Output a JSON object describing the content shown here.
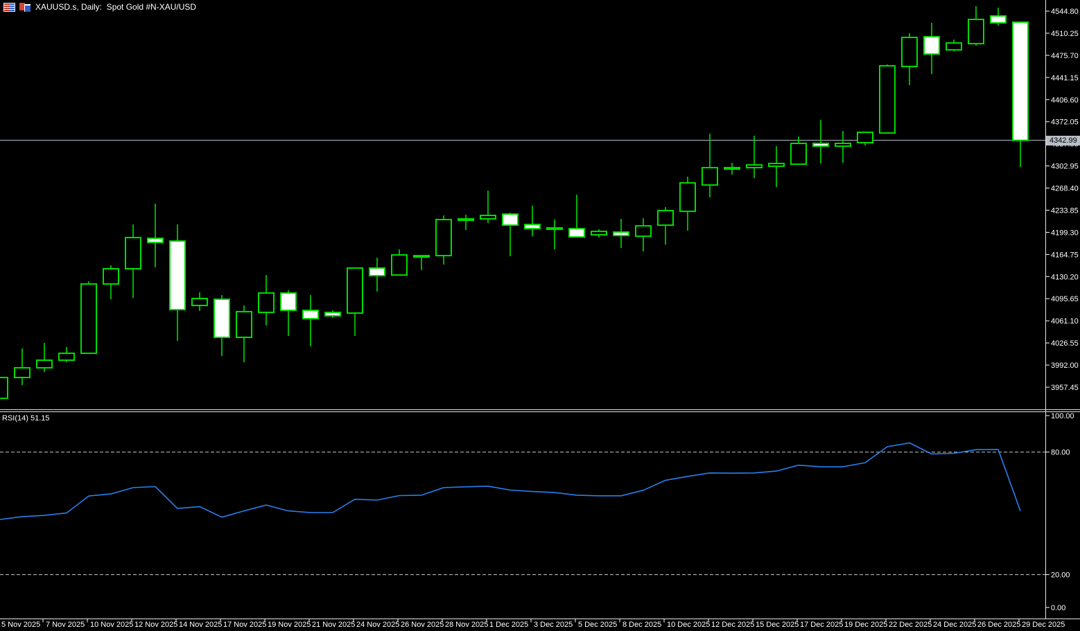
{
  "window": {
    "title": "XAUUSD.s, Daily:  Spot Gold #N-XAU/USD",
    "icons": [
      "tiled-panes-icon",
      "cascaded-charts-icon"
    ]
  },
  "indicator": {
    "name": "RSI(14)",
    "value": "51.15"
  },
  "price_scale": {
    "current_price": "4342.99",
    "ticks": [
      "4544.80",
      "4510.25",
      "4475.70",
      "4441.15",
      "4406.60",
      "4372.05",
      "4337.50",
      "4302.95",
      "4268.40",
      "4233.85",
      "4199.30",
      "4164.75",
      "4130.20",
      "4095.65",
      "4061.10",
      "4026.55",
      "3992.00",
      "3957.45"
    ]
  },
  "rsi_scale": {
    "ticks": [
      "100.00",
      "80.00",
      "20.00",
      "0.00"
    ]
  },
  "time_scale": {
    "labels": [
      "5 Nov 2025",
      "7 Nov 2025",
      "10 Nov 2025",
      "12 Nov 2025",
      "14 Nov 2025",
      "17 Nov 2025",
      "19 Nov 2025",
      "21 Nov 2025",
      "24 Nov 2025",
      "26 Nov 2025",
      "28 Nov 2025",
      "1 Dec 2025",
      "3 Dec 2025",
      "5 Dec 2025",
      "8 Dec 2025",
      "10 Dec 2025",
      "12 Dec 2025",
      "15 Dec 2025",
      "17 Dec 2025",
      "19 Dec 2025",
      "22 Dec 2025",
      "24 Dec 2025",
      "26 Dec 2025",
      "29 Dec 2025"
    ]
  },
  "colors": {
    "background": "#000000",
    "candle_outline": "#00dd00",
    "bull_fill": "#000000",
    "bear_fill": "#ffffff",
    "rsi_line": "#2880f0",
    "level_dash": "#cccccc",
    "bid_line": "#9097a0",
    "axis_line": "#e8e8e8",
    "axis_text": "#ffffff",
    "price_tag_bg": "#b9bec7",
    "price_tag_text": "#000000"
  },
  "chart_data": {
    "type": "candlestick",
    "title": "XAUUSD.s, Daily: Spot Gold #N-XAU/USD",
    "symbol": "XAUUSD.s",
    "timeframe": "Daily",
    "legend_position": "none",
    "grid": "off",
    "price_axis": {
      "visible_range": [
        3930,
        4562
      ],
      "tick_step": 34.55,
      "ticks": [
        4544.8,
        4510.25,
        4475.7,
        4441.15,
        4406.6,
        4372.05,
        4337.5,
        4302.95,
        4268.4,
        4233.85,
        4199.3,
        4164.75,
        4130.2,
        4095.65,
        4061.1,
        4026.55,
        3992.0,
        3957.45
      ]
    },
    "current_price": 4342.99,
    "candles": [
      {
        "date": "5 Nov 2025",
        "o": 3940.0,
        "h": 3972.6,
        "l": 3940.0,
        "c": 3972.6
      },
      {
        "date": "6 Nov 2025",
        "o": 3972.6,
        "h": 4018.0,
        "l": 3960.7,
        "c": 3987.7
      },
      {
        "date": "7 Nov 2025",
        "o": 3987.7,
        "h": 4026.6,
        "l": 3981.2,
        "c": 3999.6
      },
      {
        "date": "8 Nov 2025",
        "o": 3999.6,
        "h": 4020.2,
        "l": 3996.4,
        "c": 4010.4
      },
      {
        "date": "10 Nov 2025",
        "o": 4010.4,
        "h": 4122.9,
        "l": 4010.4,
        "c": 4118.6
      },
      {
        "date": "11 Nov 2025",
        "o": 4118.6,
        "h": 4147.8,
        "l": 4094.8,
        "c": 4142.4
      },
      {
        "date": "12 Nov 2025",
        "o": 4142.4,
        "h": 4211.6,
        "l": 4097.0,
        "c": 4191.1
      },
      {
        "date": "13 Nov 2025",
        "o": 4190.0,
        "h": 4244.1,
        "l": 4144.6,
        "c": 4183.5
      },
      {
        "date": "14 Nov 2025",
        "o": 4185.7,
        "h": 4211.6,
        "l": 4029.9,
        "c": 4078.6
      },
      {
        "date": "15 Nov 2025",
        "o": 4085.1,
        "h": 4105.6,
        "l": 4076.4,
        "c": 4095.9
      },
      {
        "date": "17 Nov 2025",
        "o": 4094.8,
        "h": 4101.3,
        "l": 4006.1,
        "c": 4035.3
      },
      {
        "date": "18 Nov 2025",
        "o": 4035.3,
        "h": 4085.1,
        "l": 3996.4,
        "c": 4075.4
      },
      {
        "date": "19 Nov 2025",
        "o": 4074.3,
        "h": 4132.6,
        "l": 4053.7,
        "c": 4104.5
      },
      {
        "date": "20 Nov 2025",
        "o": 4104.5,
        "h": 4108.8,
        "l": 4037.5,
        "c": 4077.5
      },
      {
        "date": "21 Nov 2025",
        "o": 4077.5,
        "h": 4101.3,
        "l": 4021.3,
        "c": 4064.5
      },
      {
        "date": "22 Nov 2025",
        "o": 4074.3,
        "h": 4077.5,
        "l": 4065.6,
        "c": 4068.9
      },
      {
        "date": "24 Nov 2025",
        "o": 4073.2,
        "h": 4143.5,
        "l": 4037.5,
        "c": 4143.5
      },
      {
        "date": "25 Nov 2025",
        "o": 4143.5,
        "h": 4159.7,
        "l": 4106.7,
        "c": 4131.6
      },
      {
        "date": "26 Nov 2025",
        "o": 4132.6,
        "h": 4172.7,
        "l": 4132.6,
        "c": 4164.0
      },
      {
        "date": "27 Nov 2025",
        "o": 4160.8,
        "h": 4162.9,
        "l": 4140.3,
        "c": 4162.9
      },
      {
        "date": "28 Nov 2025",
        "o": 4162.9,
        "h": 4225.7,
        "l": 4148.9,
        "c": 4219.2
      },
      {
        "date": "29 Nov 2025",
        "o": 4218.1,
        "h": 4226.8,
        "l": 4203.0,
        "c": 4220.3
      },
      {
        "date": "1 Dec 2025",
        "o": 4220.3,
        "h": 4264.6,
        "l": 4213.8,
        "c": 4225.7
      },
      {
        "date": "2 Dec 2025",
        "o": 4227.8,
        "h": 4230.0,
        "l": 4161.9,
        "c": 4210.5
      },
      {
        "date": "3 Dec 2025",
        "o": 4211.6,
        "h": 4240.8,
        "l": 4193.2,
        "c": 4205.1
      },
      {
        "date": "4 Dec 2025",
        "o": 4204.0,
        "h": 4219.2,
        "l": 4172.7,
        "c": 4206.2
      },
      {
        "date": "5 Dec 2025",
        "o": 4205.1,
        "h": 4258.1,
        "l": 4192.1,
        "c": 4192.1
      },
      {
        "date": "6 Dec 2025",
        "o": 4195.4,
        "h": 4204.0,
        "l": 4191.1,
        "c": 4200.8
      },
      {
        "date": "8 Dec 2025",
        "o": 4199.7,
        "h": 4220.3,
        "l": 4174.8,
        "c": 4194.3
      },
      {
        "date": "9 Dec 2025",
        "o": 4193.2,
        "h": 4221.4,
        "l": 4169.4,
        "c": 4209.4
      },
      {
        "date": "10 Dec 2025",
        "o": 4210.5,
        "h": 4238.6,
        "l": 4180.2,
        "c": 4233.2
      },
      {
        "date": "11 Dec 2025",
        "o": 4232.1,
        "h": 4286.2,
        "l": 4201.9,
        "c": 4276.5
      },
      {
        "date": "12 Dec 2025",
        "o": 4273.2,
        "h": 4353.3,
        "l": 4253.8,
        "c": 4300.3
      },
      {
        "date": "13 Dec 2025",
        "o": 4298.1,
        "h": 4307.9,
        "l": 4289.5,
        "c": 4300.3
      },
      {
        "date": "15 Dec 2025",
        "o": 4300.3,
        "h": 4350.1,
        "l": 4284.1,
        "c": 4304.6
      },
      {
        "date": "16 Dec 2025",
        "o": 4302.5,
        "h": 4333.8,
        "l": 4270.0,
        "c": 4306.8
      },
      {
        "date": "17 Dec 2025",
        "o": 4305.7,
        "h": 4349.0,
        "l": 4305.7,
        "c": 4338.2
      },
      {
        "date": "18 Dec 2025",
        "o": 4338.2,
        "h": 4375.0,
        "l": 4306.8,
        "c": 4333.8
      },
      {
        "date": "19 Dec 2025",
        "o": 4333.8,
        "h": 4357.6,
        "l": 4307.9,
        "c": 4338.2
      },
      {
        "date": "20 Dec 2025",
        "o": 4339.3,
        "h": 4355.5,
        "l": 4334.9,
        "c": 4355.5
      },
      {
        "date": "22 Dec 2025",
        "o": 4354.4,
        "h": 4461.5,
        "l": 4354.4,
        "c": 4459.3
      },
      {
        "date": "23 Dec 2025",
        "o": 4458.3,
        "h": 4510.2,
        "l": 4429.1,
        "c": 4503.7
      },
      {
        "date": "24 Dec 2025",
        "o": 4504.8,
        "h": 4526.4,
        "l": 4446.4,
        "c": 4477.7
      },
      {
        "date": "25 Dec 2025",
        "o": 4484.2,
        "h": 4500.4,
        "l": 4482.1,
        "c": 4495.0
      },
      {
        "date": "26 Dec 2025",
        "o": 4494.0,
        "h": 4552.4,
        "l": 4490.7,
        "c": 4531.8
      },
      {
        "date": "27 Dec 2025",
        "o": 4537.2,
        "h": 4550.2,
        "l": 4522.1,
        "c": 4526.4
      },
      {
        "date": "29 Dec 2025",
        "o": 4527.5,
        "h": 4527.5,
        "l": 4301.4,
        "c": 4342.99
      }
    ],
    "indicator_pane": {
      "type": "line",
      "name": "RSI",
      "period": 14,
      "last_value": 51.15,
      "range": [
        0,
        100
      ],
      "levels": [
        80,
        20
      ],
      "values": [
        47.0,
        48.4,
        49.0,
        50.2,
        58.5,
        59.5,
        62.6,
        63.1,
        52.4,
        53.3,
        48.1,
        51.2,
        54.1,
        51.2,
        50.4,
        50.4,
        56.9,
        56.5,
        58.7,
        58.9,
        62.6,
        63.0,
        63.3,
        61.4,
        60.7,
        60.2,
        58.9,
        58.6,
        58.6,
        61.3,
        66.2,
        68.1,
        69.8,
        69.7,
        69.8,
        70.7,
        73.6,
        72.8,
        72.8,
        74.8,
        82.6,
        84.5,
        79.1,
        79.4,
        81.2,
        81.3,
        51.15
      ]
    }
  }
}
